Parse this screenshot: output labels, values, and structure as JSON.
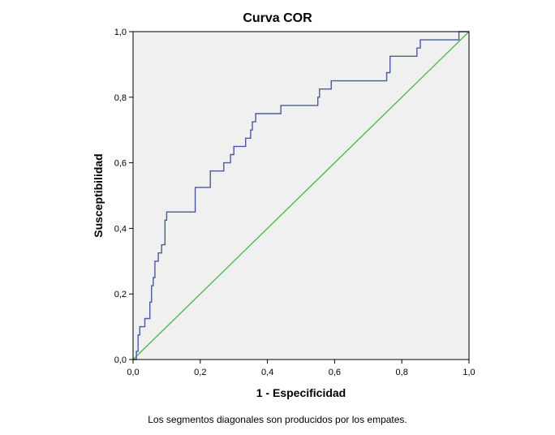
{
  "chart_data": {
    "type": "line",
    "title": "Curva COR",
    "xlabel": "1 - Especificidad",
    "ylabel": "Susceptibilidad",
    "xlim": [
      0,
      1
    ],
    "ylim": [
      0,
      1
    ],
    "x_ticks": [
      "0,0",
      "0,2",
      "0,4",
      "0,6",
      "0,8",
      "1,0"
    ],
    "y_ticks": [
      "0,0",
      "0,2",
      "0,4",
      "0,6",
      "0,8",
      "1,0"
    ],
    "grid": false,
    "plot_background": "#f0f0f0",
    "footnote": "Los segmentos diagonales son producidos por los empates.",
    "series": [
      {
        "color": "#4a5a9e",
        "x": [
          0,
          0.01,
          0.01,
          0.015,
          0.015,
          0.02,
          0.02,
          0.035,
          0.035,
          0.05,
          0.05,
          0.055,
          0.055,
          0.06,
          0.06,
          0.065,
          0.065,
          0.075,
          0.075,
          0.085,
          0.085,
          0.095,
          0.095,
          0.1,
          0.1,
          0.115,
          0.115,
          0.185,
          0.185,
          0.23,
          0.23,
          0.27,
          0.27,
          0.29,
          0.29,
          0.3,
          0.3,
          0.335,
          0.335,
          0.35,
          0.35,
          0.355,
          0.355,
          0.365,
          0.365,
          0.44,
          0.44,
          0.55,
          0.55,
          0.555,
          0.555,
          0.59,
          0.59,
          0.605,
          0.605,
          0.755,
          0.755,
          0.765,
          0.765,
          0.845,
          0.845,
          0.855,
          0.855,
          0.875,
          0.875,
          0.97,
          0.97,
          1
        ],
        "y": [
          0,
          0,
          0.025,
          0.025,
          0.075,
          0.075,
          0.1,
          0.1,
          0.125,
          0.125,
          0.175,
          0.175,
          0.225,
          0.225,
          0.25,
          0.25,
          0.3,
          0.3,
          0.325,
          0.325,
          0.35,
          0.35,
          0.425,
          0.425,
          0.45,
          0.45,
          0.45,
          0.45,
          0.525,
          0.525,
          0.575,
          0.575,
          0.6,
          0.6,
          0.625,
          0.625,
          0.65,
          0.65,
          0.675,
          0.675,
          0.7,
          0.7,
          0.725,
          0.725,
          0.75,
          0.75,
          0.775,
          0.775,
          0.8,
          0.8,
          0.825,
          0.825,
          0.85,
          0.85,
          0.85,
          0.85,
          0.875,
          0.875,
          0.925,
          0.925,
          0.95,
          0.95,
          0.975,
          0.975,
          0.975,
          0.975,
          1,
          1
        ]
      },
      {
        "color": "#4cbb50",
        "x": [
          0,
          1
        ],
        "y": [
          0,
          1
        ]
      }
    ]
  }
}
